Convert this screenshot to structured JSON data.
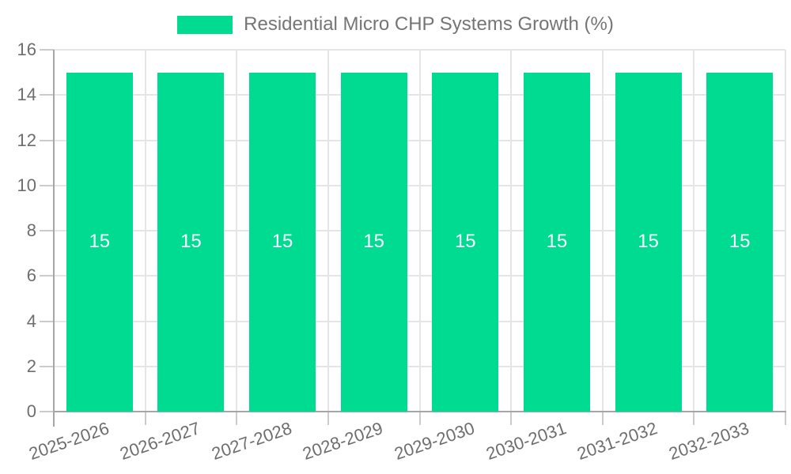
{
  "chart_data": {
    "type": "bar",
    "title": "Residential Micro CHP Systems Growth (%)",
    "categories": [
      "2025-2026",
      "2026-2027",
      "2027-2028",
      "2028-2029",
      "2029-2030",
      "2030-2031",
      "2031-2032",
      "2032-2033"
    ],
    "values": [
      15,
      15,
      15,
      15,
      15,
      15,
      15,
      15
    ],
    "bar_value_labels": [
      "15",
      "15",
      "15",
      "15",
      "15",
      "15",
      "15",
      "15"
    ],
    "xlabel": "",
    "ylabel": "",
    "ylim": [
      0,
      16
    ],
    "yticks": [
      0,
      2,
      4,
      6,
      8,
      10,
      12,
      14,
      16
    ],
    "grid": true,
    "legend_position": "top",
    "x_tick_rotation_deg": -19,
    "colors": {
      "bar": "#00DB92",
      "bar_label": "#FFFFFF",
      "axis_text": "#6E6E6E",
      "legend_text": "#757575",
      "gridline": "#E5E5E5",
      "tick": "#CBCBCB",
      "axis_border": "#A6A6A6",
      "background": "#FFFFFF"
    }
  }
}
